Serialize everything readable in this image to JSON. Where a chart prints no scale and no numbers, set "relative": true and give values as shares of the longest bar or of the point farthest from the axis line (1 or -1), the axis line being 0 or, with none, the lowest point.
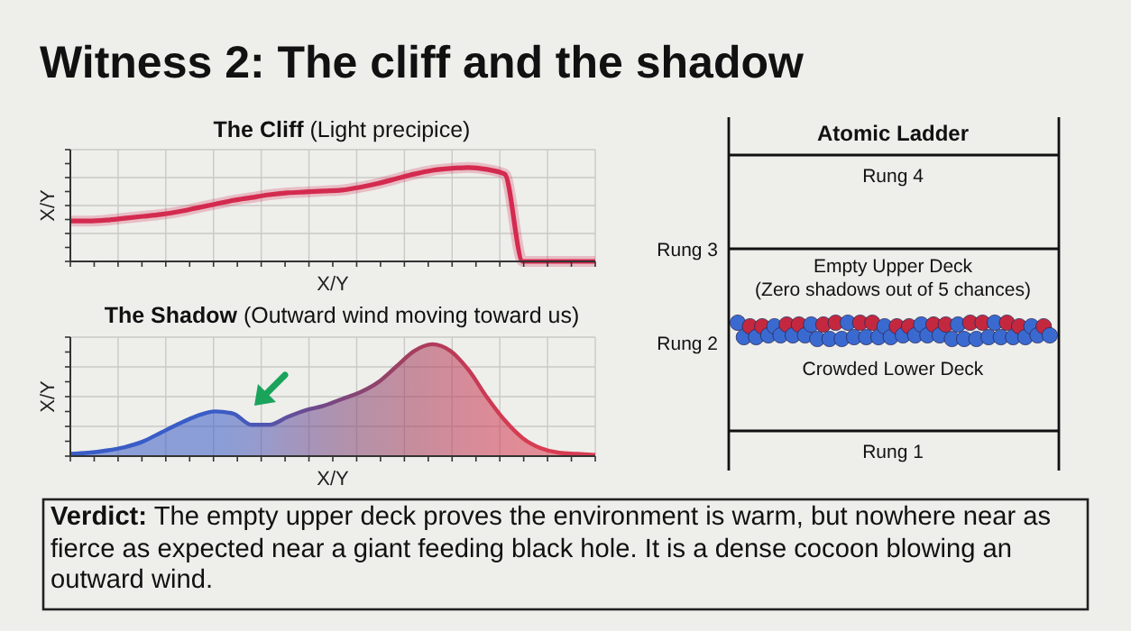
{
  "chart_data": [
    {
      "type": "line",
      "title": "The Cliff",
      "subtitle": "(Light precipice)",
      "xlabel": "X/Y",
      "ylabel": "X/Y",
      "relative": true,
      "grid": true,
      "categories": [
        null,
        null,
        null,
        null,
        null,
        null,
        null,
        null,
        null,
        null,
        null,
        null,
        null,
        null,
        null,
        null,
        null,
        null,
        null,
        null,
        null,
        null,
        null,
        null,
        null,
        null,
        null,
        null,
        null,
        null
      ],
      "series": [
        {
          "color": "#d42a4f",
          "values": [
            0.43,
            0.43,
            0.44,
            0.46,
            0.48,
            0.5,
            0.53,
            0.57,
            0.61,
            0.65,
            0.68,
            0.71,
            0.73,
            0.74,
            0.75,
            0.76,
            0.79,
            0.83,
            0.88,
            0.93,
            0.97,
            0.99,
            1,
            0.98,
            0.93,
            0,
            0,
            0,
            0,
            0
          ]
        }
      ]
    },
    {
      "type": "area",
      "title": "The Shadow",
      "subtitle": "(Outward wind moving toward us)",
      "xlabel": "X/Y",
      "ylabel": "X/Y",
      "relative": true,
      "grid": true,
      "categories": [
        null,
        null,
        null,
        null,
        null,
        null,
        null,
        null,
        null,
        null,
        null,
        null,
        null,
        null,
        null,
        null,
        null,
        null,
        null,
        null,
        null,
        null,
        null,
        null,
        null,
        null,
        null,
        null,
        null,
        null
      ],
      "series": [
        {
          "colors": [
            "#3a5cc6",
            "#3a5cc6",
            "#3a5cc6",
            "#3a5cc6",
            "#3a5cc6",
            "#3a5cc6",
            "#3a5cc6",
            "#3a5cc6",
            "#3a5cc6",
            "#3e5bc0",
            "#4a58b8",
            "#5555ac",
            "#60509e",
            "#6a4c92",
            "#744986",
            "#7e467c",
            "#884572",
            "#92436a",
            "#9c4064",
            "#a63e5e",
            "#b03c5a",
            "#ba3b58",
            "#c43a55",
            "#cc3a54",
            "#d23b52",
            "#d63c52",
            "#d83c52",
            "#d83c52",
            "#d83c52",
            "#d83c52"
          ],
          "values": [
            0.02,
            0.03,
            0.05,
            0.08,
            0.13,
            0.21,
            0.29,
            0.36,
            0.4,
            0.38,
            0.28,
            0.28,
            0.35,
            0.41,
            0.45,
            0.51,
            0.57,
            0.66,
            0.8,
            0.94,
            1,
            0.94,
            0.77,
            0.53,
            0.32,
            0.16,
            0.07,
            0.03,
            0.02,
            0.01
          ]
        }
      ]
    },
    {
      "type": "other",
      "title": "Atomic Ladder",
      "annotations": [
        "Rung 4",
        "Rung 3",
        "Empty Upper Deck",
        "(Zero shadows out of 5 chances)",
        "Rung 2",
        "Crowded Lower Deck",
        "Rung 1"
      ]
    },
    {
      "type": "other",
      "title": "Witness 2: The cliff and the shadow",
      "annotations": [
        "Verdict:",
        "The empty upper deck proves the environment is warm, but nowhere near as fierce as expected near a giant feeding black hole. It is a dense cocoon blowing an outward wind."
      ]
    }
  ]
}
